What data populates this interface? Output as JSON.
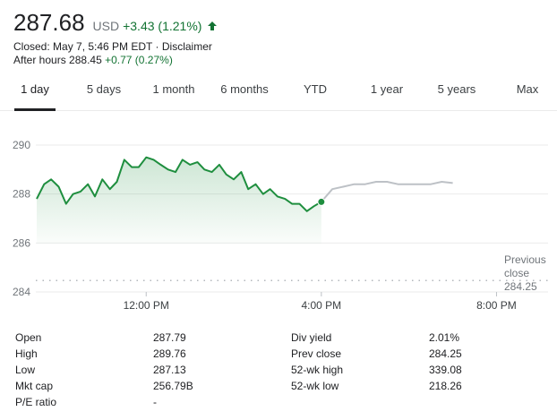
{
  "quote": {
    "price": "287.68",
    "currency": "USD",
    "change": "+3.43 (1.21%)",
    "change_icon": "arrow-up-icon",
    "closed_text": "Closed: May 7, 5:46 PM EDT",
    "separator": "·",
    "disclaimer": "Disclaimer",
    "after_hours_label": "After hours",
    "after_hours_price": "288.45",
    "after_hours_change": "+0.77 (0.27%)"
  },
  "tabs": [
    "1 day",
    "5 days",
    "1 month",
    "6 months",
    "YTD",
    "1 year",
    "5 years",
    "Max"
  ],
  "active_tab": 0,
  "colors": {
    "up": "#137333",
    "line": "#1e8e3e",
    "after_hours_line": "#bdc1c6",
    "grid": "#ebebeb"
  },
  "chart_data": {
    "type": "line",
    "y_ticks": [
      "290",
      "288",
      "286",
      "284"
    ],
    "x_ticks": [
      "12:00 PM",
      "4:00 PM",
      "8:00 PM"
    ],
    "ylim": [
      284,
      290.5
    ],
    "x_unit": "hours after 9:30 AM",
    "previous_close": {
      "label_line1": "Previous",
      "label_line2": "close",
      "value": "284.25"
    },
    "series": [
      {
        "name": "regular session",
        "x": [
          0,
          0.17,
          0.33,
          0.5,
          0.67,
          0.83,
          1.0,
          1.17,
          1.33,
          1.5,
          1.67,
          1.83,
          2.0,
          2.17,
          2.33,
          2.5,
          2.67,
          2.83,
          3.0,
          3.17,
          3.33,
          3.5,
          3.67,
          3.83,
          4.0,
          4.17,
          4.33,
          4.5,
          4.67,
          4.83,
          5.0,
          5.17,
          5.33,
          5.5,
          5.67,
          5.83,
          6.0,
          6.17,
          6.33,
          6.5
        ],
        "y": [
          287.8,
          288.4,
          288.6,
          288.3,
          287.6,
          288.0,
          288.1,
          288.4,
          287.9,
          288.6,
          288.2,
          288.5,
          289.4,
          289.1,
          289.1,
          289.5,
          289.4,
          289.2,
          289.0,
          288.9,
          289.4,
          289.2,
          289.3,
          289.0,
          288.9,
          289.2,
          288.8,
          288.6,
          288.9,
          288.2,
          288.4,
          288.0,
          288.2,
          287.9,
          287.8,
          287.6,
          287.6,
          287.3,
          287.5,
          287.68
        ]
      },
      {
        "name": "after hours",
        "x": [
          6.5,
          6.75,
          7.0,
          7.25,
          7.5,
          7.75,
          8.0,
          8.25,
          8.5,
          8.75,
          9.0,
          9.25,
          9.5
        ],
        "y": [
          287.68,
          288.2,
          288.3,
          288.4,
          288.4,
          288.5,
          288.5,
          288.4,
          288.4,
          288.4,
          288.4,
          288.5,
          288.45
        ]
      }
    ]
  },
  "stats": {
    "left": [
      {
        "label": "Open",
        "value": "287.79"
      },
      {
        "label": "High",
        "value": "289.76"
      },
      {
        "label": "Low",
        "value": "287.13"
      },
      {
        "label": "Mkt cap",
        "value": "256.79B"
      },
      {
        "label": "P/E ratio",
        "value": "-"
      }
    ],
    "right": [
      {
        "label": "Div yield",
        "value": "2.01%"
      },
      {
        "label": "Prev close",
        "value": "284.25"
      },
      {
        "label": "52-wk high",
        "value": "339.08"
      },
      {
        "label": "52-wk low",
        "value": "218.26"
      }
    ]
  }
}
